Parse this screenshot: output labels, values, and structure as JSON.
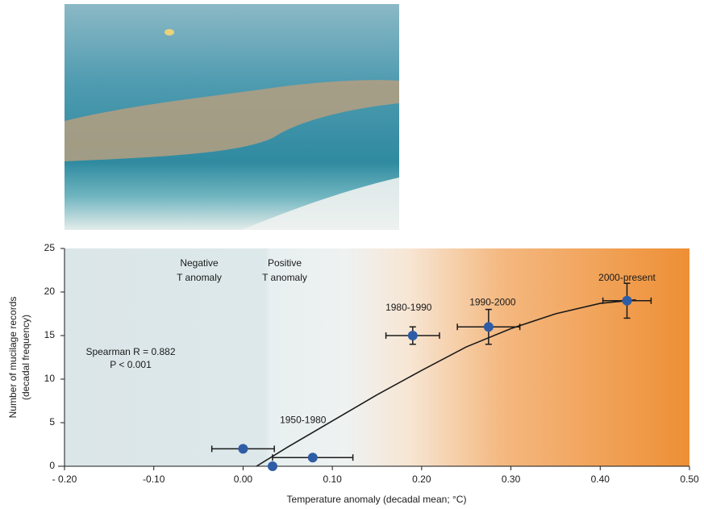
{
  "chart_data": {
    "type": "scatter",
    "x_label": "Temperature anomaly (decadal mean; °C)",
    "y_label": [
      "Number of mucilage records",
      "(decadal frequency)"
    ],
    "annotations": [
      "Negative",
      "T anomaly",
      "Positive",
      "T anomaly",
      "Spearman R = 0.882",
      "P < 0.001"
    ],
    "xlim": [
      -0.2,
      0.5
    ],
    "xticks": [
      {
        "value": -0.2,
        "label": "- 0.20"
      },
      {
        "value": -0.1,
        "label": "-0.10"
      },
      {
        "value": 0,
        "label": "0.00"
      },
      {
        "value": 0.1,
        "label": "0.10"
      },
      {
        "value": 0.2,
        "label": "0.20"
      },
      {
        "value": 0.3,
        "label": "0.30"
      },
      {
        "value": 0.4,
        "label": "0.40"
      },
      {
        "value": 0.5,
        "label": "0.50"
      }
    ],
    "ylim": [
      0,
      25
    ],
    "yticks": [
      0,
      5,
      10,
      15,
      20,
      25
    ],
    "series": [
      {
        "color": "#2e5da6",
        "x": [
          0.0,
          0.033,
          0.078,
          0.19,
          0.275,
          0.43
        ],
        "values": [
          2,
          0,
          1,
          15,
          16,
          19
        ],
        "xerr": [
          0.035,
          null,
          0.045,
          0.03,
          0.035,
          0.027
        ],
        "yerr": [
          null,
          null,
          null,
          1,
          2,
          2
        ],
        "point_labels": [
          null,
          null,
          "1950-1980",
          "1980-1990",
          "1990-2000",
          "2000-present"
        ]
      }
    ],
    "fit": {
      "color": "#1a1a1a",
      "x": [
        0.015,
        0.05,
        0.1,
        0.15,
        0.2,
        0.25,
        0.3,
        0.35,
        0.4,
        0.44
      ],
      "values": [
        0,
        2.2,
        5.2,
        8.2,
        11,
        13.7,
        15.8,
        17.5,
        18.7,
        19.1
      ]
    }
  }
}
